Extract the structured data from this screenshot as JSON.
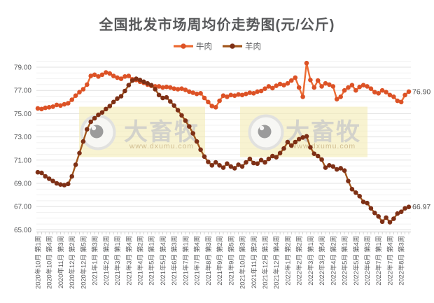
{
  "title": "全国批发市场周均价走势图(元/公斤)",
  "legend": [
    {
      "label": "牛肉",
      "line": "#EC6B33",
      "marker": "#DC5226"
    },
    {
      "label": "羊肉",
      "line": "#A2571D",
      "marker": "#7E3016"
    }
  ],
  "watermark": {
    "brand": "大畜牧",
    "site": "www.dxumu.com"
  },
  "axis_color": "#58595B",
  "chart_data": {
    "type": "line",
    "title": "全国批发市场周均价走势图(元/公斤)",
    "ylim": [
      65.0,
      79.5
    ],
    "grid": "on",
    "legend_position": "top",
    "yticks": [
      "79.00",
      "77.00",
      "75.00",
      "73.00",
      "71.00",
      "69.00",
      "67.00",
      "65.00"
    ],
    "label_every": 3,
    "x_labels": [
      "2020年10月 第1周",
      "2020年10月 第4周",
      "2020年11月 第3周",
      "2020年12月 第2周",
      "2020年12月 第5周",
      "2021年1月 第3周",
      "2021年2月 第2周",
      "2021年3月 第1周",
      "2021年3月 第4周",
      "2021年4月 第2周",
      "2021年5月 第1周",
      "2021年5月 第4周",
      "2021年6月 第3周",
      "2021年7月 第1周",
      "2021年7月 第4周",
      "2021年8月 第3周",
      "2021年9月 第2周",
      "2021年9月 第5周",
      "2021年10月 第3周",
      "2021年11月 第2周",
      "2021年12月 第1周",
      "2021年12月 第4周",
      "2022年1月 第2周",
      "2022年2月 第2周",
      "2022年3月 第1周",
      "2022年3月 第4周",
      "2022年4月 第2周",
      "2022年5月 第1周",
      "2022年5月 第4周",
      "2022年6月 第3周",
      "2022年7月 第1周",
      "2022年7月 第4周",
      "2022年8月 第3周"
    ],
    "series": [
      {
        "name": "牛肉",
        "line_color": "#EC6B33",
        "marker_color": "#DC5226",
        "end_label": "76.90",
        "values": [
          75.45,
          75.4,
          75.5,
          75.55,
          75.6,
          75.75,
          75.7,
          75.8,
          75.9,
          76.2,
          76.55,
          76.85,
          77.1,
          77.5,
          78.25,
          78.35,
          78.2,
          78.35,
          78.55,
          78.45,
          78.25,
          78.1,
          78.0,
          78.2,
          78.25,
          77.95,
          77.9,
          77.75,
          77.65,
          77.5,
          77.4,
          77.35,
          77.35,
          77.25,
          77.3,
          77.25,
          77.15,
          77.1,
          77.15,
          77.05,
          76.9,
          76.8,
          76.7,
          76.75,
          76.35,
          76.0,
          75.65,
          75.55,
          76.1,
          76.55,
          76.45,
          76.6,
          76.55,
          76.65,
          76.6,
          76.7,
          76.8,
          76.75,
          76.9,
          76.95,
          77.15,
          77.35,
          77.2,
          77.4,
          77.55,
          77.45,
          77.6,
          77.85,
          78.1,
          77.25,
          76.45,
          79.35,
          77.9,
          77.25,
          77.85,
          77.35,
          77.6,
          77.5,
          77.35,
          76.25,
          76.45,
          77.0,
          77.25,
          77.45,
          77.0,
          77.3,
          77.45,
          77.35,
          77.15,
          76.85,
          76.75,
          77.0,
          76.85,
          76.6,
          76.45,
          76.1,
          76.0,
          76.6,
          76.9
        ]
      },
      {
        "name": "羊肉",
        "line_color": "#A2571D",
        "marker_color": "#7E3016",
        "end_label": "66.97",
        "values": [
          69.95,
          69.9,
          69.6,
          69.4,
          69.2,
          69.0,
          68.9,
          68.85,
          68.95,
          69.6,
          70.6,
          71.6,
          72.6,
          73.65,
          74.3,
          74.6,
          74.9,
          75.1,
          75.4,
          75.65,
          76.0,
          76.3,
          76.5,
          76.95,
          77.45,
          77.85,
          78.0,
          77.9,
          77.75,
          77.6,
          77.45,
          77.1,
          76.6,
          76.35,
          76.4,
          76.05,
          75.7,
          75.3,
          74.85,
          74.4,
          73.9,
          73.3,
          72.6,
          71.9,
          71.3,
          70.85,
          70.55,
          70.8,
          70.55,
          70.35,
          70.7,
          70.45,
          70.3,
          70.6,
          70.45,
          70.8,
          71.1,
          70.75,
          70.7,
          71.0,
          70.8,
          71.1,
          71.35,
          71.25,
          71.6,
          72.0,
          72.55,
          72.25,
          72.55,
          72.8,
          72.95,
          73.05,
          72.1,
          71.55,
          71.35,
          71.05,
          70.35,
          70.55,
          70.45,
          70.2,
          70.3,
          70.1,
          69.2,
          68.5,
          68.2,
          67.9,
          67.4,
          67.3,
          66.85,
          66.45,
          66.15,
          65.7,
          66.05,
          65.65,
          65.95,
          66.4,
          66.55,
          66.85,
          66.97
        ]
      }
    ]
  }
}
